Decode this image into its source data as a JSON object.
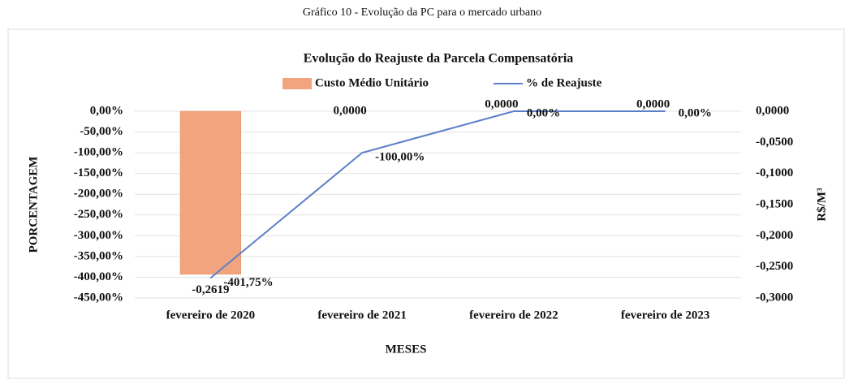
{
  "caption": "Gráfico 10 - Evolução da PC para o mercado urbano",
  "chart_data": {
    "type": "combo",
    "title": "Evolução do Reajuste da Parcela Compensatória",
    "categories": [
      "fevereiro de 2020",
      "fevereiro de 2021",
      "fevereiro de 2022",
      "fevereiro de 2023"
    ],
    "series": [
      {
        "name": "Custo Médio Unitário",
        "type": "bar",
        "axis": "y2",
        "color": "#f2a47e",
        "values": [
          -0.2619,
          0,
          0,
          0
        ],
        "value_labels": [
          "-0,2619",
          "0,0000",
          "0,0000",
          "0,0000"
        ]
      },
      {
        "name": "% de Reajuste",
        "type": "line",
        "axis": "y",
        "color": "#5b7fc7",
        "values": [
          -401.75,
          -100,
          0,
          0
        ],
        "value_labels": [
          "-401,75%",
          "-100,00%",
          "0,00%",
          "0,00%"
        ]
      }
    ],
    "y_label": "PORCENTAGEM",
    "y2_label": "R$/M³",
    "x_label": "MESES",
    "ylim": [
      -450,
      0
    ],
    "yticks": [
      {
        "value": 0,
        "label": "0,00%"
      },
      {
        "value": -50,
        "label": "-50,00%"
      },
      {
        "value": -100,
        "label": "-100,00%"
      },
      {
        "value": -150,
        "label": "-150,00%"
      },
      {
        "value": -200,
        "label": "-200,00%"
      },
      {
        "value": -250,
        "label": "-250,00%"
      },
      {
        "value": -300,
        "label": "-300,00%"
      },
      {
        "value": -350,
        "label": "-350,00%"
      },
      {
        "value": -400,
        "label": "-400,00%"
      },
      {
        "value": -450,
        "label": "-450,00%"
      }
    ],
    "y2lim": [
      -0.3,
      0
    ],
    "y2ticks": [
      {
        "value": 0,
        "label": "0,0000"
      },
      {
        "value": -0.05,
        "label": "-0,0500"
      },
      {
        "value": -0.1,
        "label": "-0,1000"
      },
      {
        "value": -0.15,
        "label": "-0,1500"
      },
      {
        "value": -0.2,
        "label": "-0,2000"
      },
      {
        "value": -0.25,
        "label": "-0,2500"
      },
      {
        "value": -0.3,
        "label": "-0,3000"
      }
    ],
    "grid": true,
    "legend": "top"
  }
}
